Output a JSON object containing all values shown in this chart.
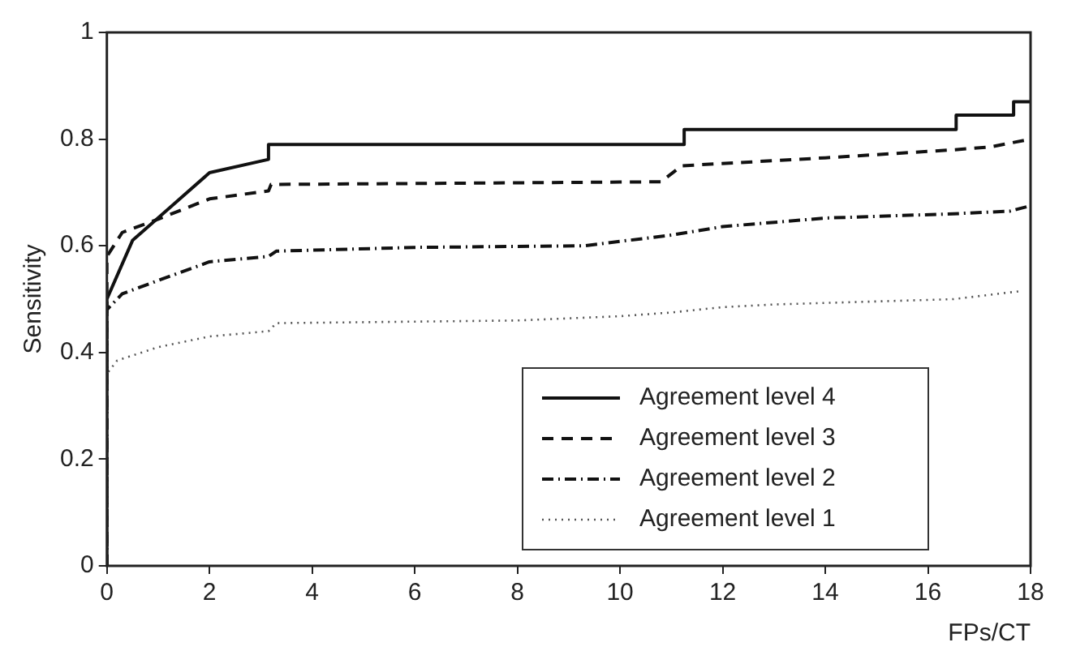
{
  "chart_data": {
    "type": "line",
    "xlabel": "FPs/CT",
    "ylabel": "Sensitivity",
    "xlim": [
      0,
      18
    ],
    "ylim": [
      0,
      1
    ],
    "xticks": [
      0,
      2,
      4,
      6,
      8,
      10,
      12,
      14,
      16,
      18
    ],
    "yticks": [
      0,
      0.2,
      0.4,
      0.6,
      0.8,
      1
    ],
    "grid": false,
    "legend": "bottom right",
    "marker": "none",
    "series": [
      {
        "name": "Agreement level 4",
        "color": "#111111",
        "line_style": "solid",
        "x": [
          0,
          0,
          0.5,
          2,
          3.15,
          3.15,
          11.25,
          11.25,
          16.55,
          16.55,
          17.67,
          17.67,
          18
        ],
        "values": [
          0,
          0.5,
          0.61,
          0.737,
          0.762,
          0.79,
          0.79,
          0.818,
          0.818,
          0.845,
          0.845,
          0.87,
          0.87
        ]
      },
      {
        "name": "Agreement level 3",
        "color": "#111111",
        "line_style": "dashed",
        "x": [
          0,
          0,
          0.3,
          1,
          2,
          3.15,
          3.2,
          10.8,
          11.2,
          14,
          16.5,
          17.2,
          18
        ],
        "values": [
          0,
          0.58,
          0.625,
          0.65,
          0.688,
          0.703,
          0.715,
          0.72,
          0.75,
          0.765,
          0.78,
          0.785,
          0.8
        ]
      },
      {
        "name": "Agreement level 2",
        "color": "#111111",
        "line_style": "dashdot",
        "x": [
          0,
          0,
          0.3,
          1,
          2,
          3.15,
          3.3,
          6,
          9.3,
          11,
          12,
          14,
          16.5,
          17.6,
          18
        ],
        "values": [
          0,
          0.48,
          0.51,
          0.535,
          0.57,
          0.58,
          0.59,
          0.597,
          0.6,
          0.62,
          0.636,
          0.652,
          0.66,
          0.665,
          0.675
        ]
      },
      {
        "name": "Agreement level 1",
        "color": "#555555",
        "line_style": "dotted",
        "x": [
          0,
          0,
          0.2,
          1,
          2,
          3.15,
          3.3,
          8,
          10,
          11,
          12,
          13,
          16.5,
          17.8
        ],
        "values": [
          0,
          0.36,
          0.385,
          0.41,
          0.43,
          0.44,
          0.455,
          0.46,
          0.468,
          0.475,
          0.485,
          0.49,
          0.5,
          0.515
        ]
      }
    ]
  }
}
